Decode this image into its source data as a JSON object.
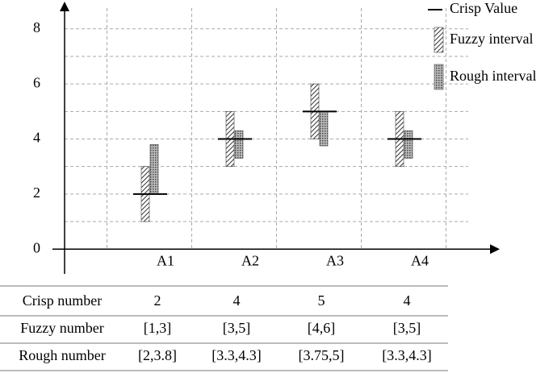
{
  "chart_data": {
    "type": "interval",
    "categories": [
      "A1",
      "A2",
      "A3",
      "A4"
    ],
    "series": [
      {
        "name": "Crisp Value",
        "kind": "crisp",
        "color": "#000000",
        "values": [
          2,
          4,
          5,
          4
        ]
      },
      {
        "name": "Fuzzy interval",
        "kind": "hatch",
        "color": "#555555",
        "low": [
          1,
          3,
          4,
          3
        ],
        "high": [
          3,
          5,
          6,
          5
        ]
      },
      {
        "name": "Rough interval",
        "kind": "dots",
        "color": "#777777",
        "low": [
          2,
          3.3,
          3.75,
          3.3
        ],
        "high": [
          3.8,
          4.3,
          5,
          4.3
        ]
      }
    ],
    "ylim": [
      -0.9,
      8.9
    ],
    "yticks": [
      0,
      2,
      4,
      6,
      8
    ],
    "minor_grid": [
      1,
      3,
      5,
      7
    ],
    "grid": true,
    "legend": "top-right"
  },
  "table": {
    "rows": [
      [
        "Crisp number",
        "2",
        "4",
        "5",
        "4"
      ],
      [
        "Fuzzy number",
        "[1,3]",
        "[3,5]",
        "[4,6]",
        "[3,5]"
      ],
      [
        "Rough number",
        "[2,3.8]",
        "[3.3,4.3]",
        "[3.75,5]",
        "[3.3,4.3]"
      ]
    ]
  }
}
